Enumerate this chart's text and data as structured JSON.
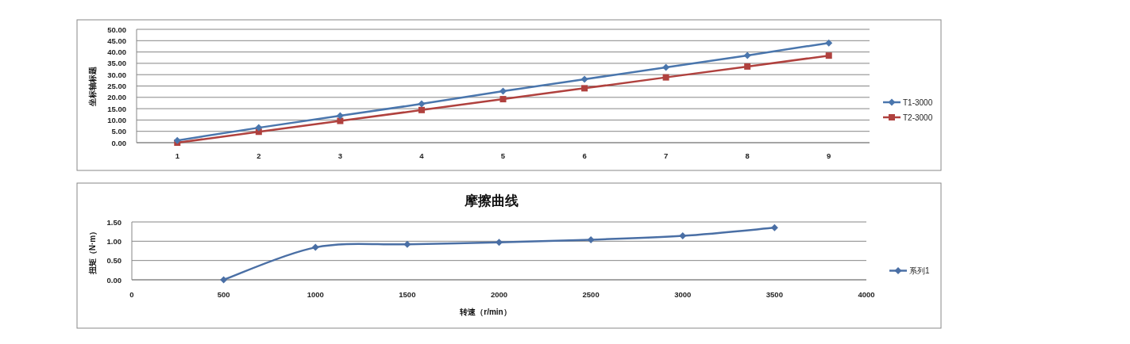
{
  "chart_data": [
    {
      "type": "line",
      "categories": [
        "1",
        "2",
        "3",
        "4",
        "5",
        "6",
        "7",
        "8",
        "9"
      ],
      "ylabel": "坐标轴标题",
      "ylim": [
        0,
        50
      ],
      "yticks": [
        {
          "value": 0,
          "label": "0.00"
        },
        {
          "value": 5,
          "label": "5.00"
        },
        {
          "value": 10,
          "label": "10.00"
        },
        {
          "value": 15,
          "label": "15.00"
        },
        {
          "value": 20,
          "label": "20.00"
        },
        {
          "value": 25,
          "label": "25.00"
        },
        {
          "value": 30,
          "label": "30.00"
        },
        {
          "value": 35,
          "label": "35.00"
        },
        {
          "value": 40,
          "label": "40.00"
        },
        {
          "value": 45,
          "label": "45.00"
        },
        {
          "value": 50,
          "label": "50.00"
        }
      ],
      "grid": "y",
      "legend": "right",
      "series": [
        {
          "name": "T1-3000",
          "color": "#4a76ad",
          "marker": "diamond",
          "values": [
            1.0,
            6.6,
            11.9,
            17.1,
            22.7,
            28.0,
            33.2,
            38.5,
            44.0
          ]
        },
        {
          "name": "T2-3000",
          "color": "#b0413e",
          "marker": "square",
          "values": [
            0,
            4.8,
            9.6,
            14.4,
            19.2,
            24.0,
            28.8,
            33.6,
            38.4
          ]
        }
      ]
    },
    {
      "type": "line",
      "title": "摩擦曲线",
      "xlabel": "转速（r/min）",
      "ylabel": "扭矩（N·m）",
      "xlim": [
        0,
        4000
      ],
      "xticks": [
        0,
        500,
        1000,
        1500,
        2000,
        2500,
        3000,
        3500,
        4000
      ],
      "ylim": [
        0,
        1.5
      ],
      "yticks": [
        {
          "value": 0,
          "label": "0.00"
        },
        {
          "value": 0.5,
          "label": "0.50"
        },
        {
          "value": 1,
          "label": "1.00"
        },
        {
          "value": 1.5,
          "label": "1.50"
        }
      ],
      "grid": "y",
      "legend": "right",
      "series": [
        {
          "name": "系列1",
          "color": "#4a6fa5",
          "marker": "diamond",
          "x": [
            500,
            1000,
            1500,
            2000,
            2500,
            3000,
            3500
          ],
          "values": [
            0,
            0.84,
            0.92,
            0.97,
            1.04,
            1.14,
            1.35
          ]
        }
      ]
    }
  ]
}
